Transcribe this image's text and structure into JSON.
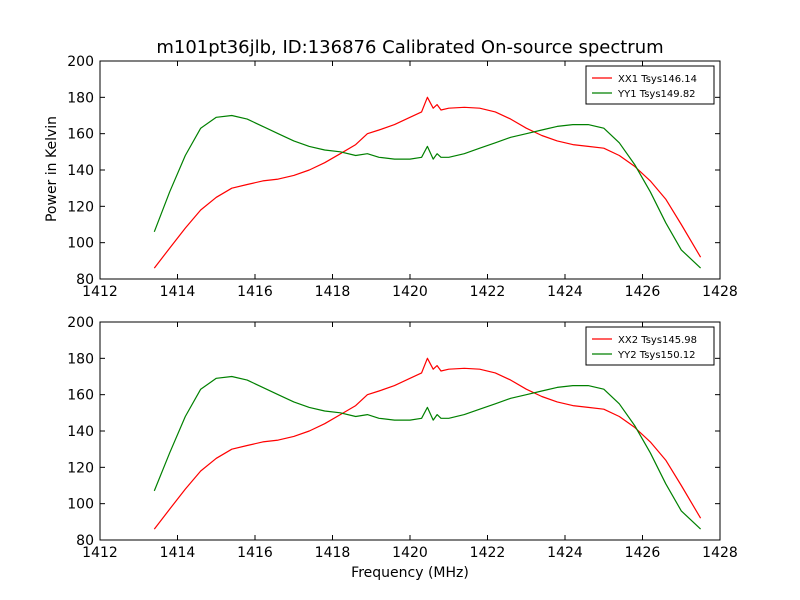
{
  "figure": {
    "title": "m101pt36jlb, ID:136876 Calibrated On-source spectrum",
    "xlabel": "Frequency (MHz)",
    "ylabel": "Power in Kelvin"
  },
  "colors": {
    "xx": "#ff0000",
    "yy": "#008000"
  },
  "chart_data": [
    {
      "type": "line",
      "title": "",
      "xlabel": "",
      "ylabel": "Power in Kelvin",
      "xlim": [
        1412,
        1428
      ],
      "ylim": [
        80,
        200
      ],
      "xticks": [
        1412,
        1414,
        1416,
        1418,
        1420,
        1422,
        1424,
        1426,
        1428
      ],
      "yticks": [
        80,
        100,
        120,
        140,
        160,
        180,
        200
      ],
      "grid": false,
      "legend_position": "top-right",
      "series": [
        {
          "name": "XX1 Tsys146.14",
          "color": "#ff0000",
          "x": [
            1413.4,
            1413.8,
            1414.2,
            1414.6,
            1415.0,
            1415.4,
            1415.8,
            1416.2,
            1416.6,
            1417.0,
            1417.4,
            1417.8,
            1418.2,
            1418.6,
            1418.9,
            1419.2,
            1419.6,
            1420.0,
            1420.3,
            1420.45,
            1420.6,
            1420.7,
            1420.8,
            1421.0,
            1421.4,
            1421.8,
            1422.2,
            1422.6,
            1423.0,
            1423.4,
            1423.8,
            1424.2,
            1424.6,
            1425.0,
            1425.4,
            1425.8,
            1426.2,
            1426.6,
            1427.0,
            1427.5
          ],
          "y": [
            86,
            97,
            108,
            118,
            125,
            130,
            132,
            134,
            135,
            137,
            140,
            144,
            149,
            154,
            160,
            162,
            165,
            169,
            172,
            180,
            174,
            176,
            173,
            174,
            174.5,
            174,
            172,
            168,
            163,
            159,
            156,
            154,
            153,
            152,
            148,
            142,
            134,
            124,
            110,
            92
          ]
        },
        {
          "name": "YY1 Tsys149.82",
          "color": "#008000",
          "x": [
            1413.4,
            1413.8,
            1414.2,
            1414.6,
            1415.0,
            1415.4,
            1415.8,
            1416.2,
            1416.6,
            1417.0,
            1417.4,
            1417.8,
            1418.2,
            1418.6,
            1418.9,
            1419.2,
            1419.6,
            1420.0,
            1420.3,
            1420.45,
            1420.6,
            1420.7,
            1420.8,
            1421.0,
            1421.4,
            1421.8,
            1422.2,
            1422.6,
            1423.0,
            1423.4,
            1423.8,
            1424.2,
            1424.6,
            1425.0,
            1425.4,
            1425.8,
            1426.2,
            1426.6,
            1427.0,
            1427.5
          ],
          "y": [
            106,
            128,
            148,
            163,
            169,
            170,
            168,
            164,
            160,
            156,
            153,
            151,
            150,
            148,
            149,
            147,
            146,
            146,
            147,
            153,
            146,
            149,
            147,
            147,
            149,
            152,
            155,
            158,
            160,
            162,
            164,
            165,
            165,
            163,
            155,
            143,
            128,
            111,
            96,
            86
          ]
        }
      ]
    },
    {
      "type": "line",
      "title": "",
      "xlabel": "Frequency (MHz)",
      "ylabel": "",
      "xlim": [
        1412,
        1428
      ],
      "ylim": [
        80,
        200
      ],
      "xticks": [
        1412,
        1414,
        1416,
        1418,
        1420,
        1422,
        1424,
        1426,
        1428
      ],
      "yticks": [
        80,
        100,
        120,
        140,
        160,
        180,
        200
      ],
      "grid": false,
      "legend_position": "top-right",
      "series": [
        {
          "name": "XX2 Tsys145.98",
          "color": "#ff0000",
          "x": [
            1413.4,
            1413.8,
            1414.2,
            1414.6,
            1415.0,
            1415.4,
            1415.8,
            1416.2,
            1416.6,
            1417.0,
            1417.4,
            1417.8,
            1418.2,
            1418.6,
            1418.9,
            1419.2,
            1419.6,
            1420.0,
            1420.3,
            1420.45,
            1420.6,
            1420.7,
            1420.8,
            1421.0,
            1421.4,
            1421.8,
            1422.2,
            1422.6,
            1423.0,
            1423.4,
            1423.8,
            1424.2,
            1424.6,
            1425.0,
            1425.4,
            1425.8,
            1426.2,
            1426.6,
            1427.0,
            1427.5
          ],
          "y": [
            86,
            97,
            108,
            118,
            125,
            130,
            132,
            134,
            135,
            137,
            140,
            144,
            149,
            154,
            160,
            162,
            165,
            169,
            172,
            180,
            174,
            176,
            173,
            174,
            174.5,
            174,
            172,
            168,
            163,
            159,
            156,
            154,
            153,
            152,
            148,
            142,
            134,
            124,
            110,
            92
          ]
        },
        {
          "name": "YY2 Tsys150.12",
          "color": "#008000",
          "x": [
            1413.4,
            1413.8,
            1414.2,
            1414.6,
            1415.0,
            1415.4,
            1415.8,
            1416.2,
            1416.6,
            1417.0,
            1417.4,
            1417.8,
            1418.2,
            1418.6,
            1418.9,
            1419.2,
            1419.6,
            1420.0,
            1420.3,
            1420.45,
            1420.6,
            1420.7,
            1420.8,
            1421.0,
            1421.4,
            1421.8,
            1422.2,
            1422.6,
            1423.0,
            1423.4,
            1423.8,
            1424.2,
            1424.6,
            1425.0,
            1425.4,
            1425.8,
            1426.2,
            1426.6,
            1427.0,
            1427.5
          ],
          "y": [
            107,
            128,
            148,
            163,
            169,
            170,
            168,
            164,
            160,
            156,
            153,
            151,
            150,
            148,
            149,
            147,
            146,
            146,
            147,
            153,
            146,
            149,
            147,
            147,
            149,
            152,
            155,
            158,
            160,
            162,
            164,
            165,
            165,
            163,
            155,
            143,
            128,
            111,
            96,
            86
          ]
        }
      ]
    }
  ]
}
